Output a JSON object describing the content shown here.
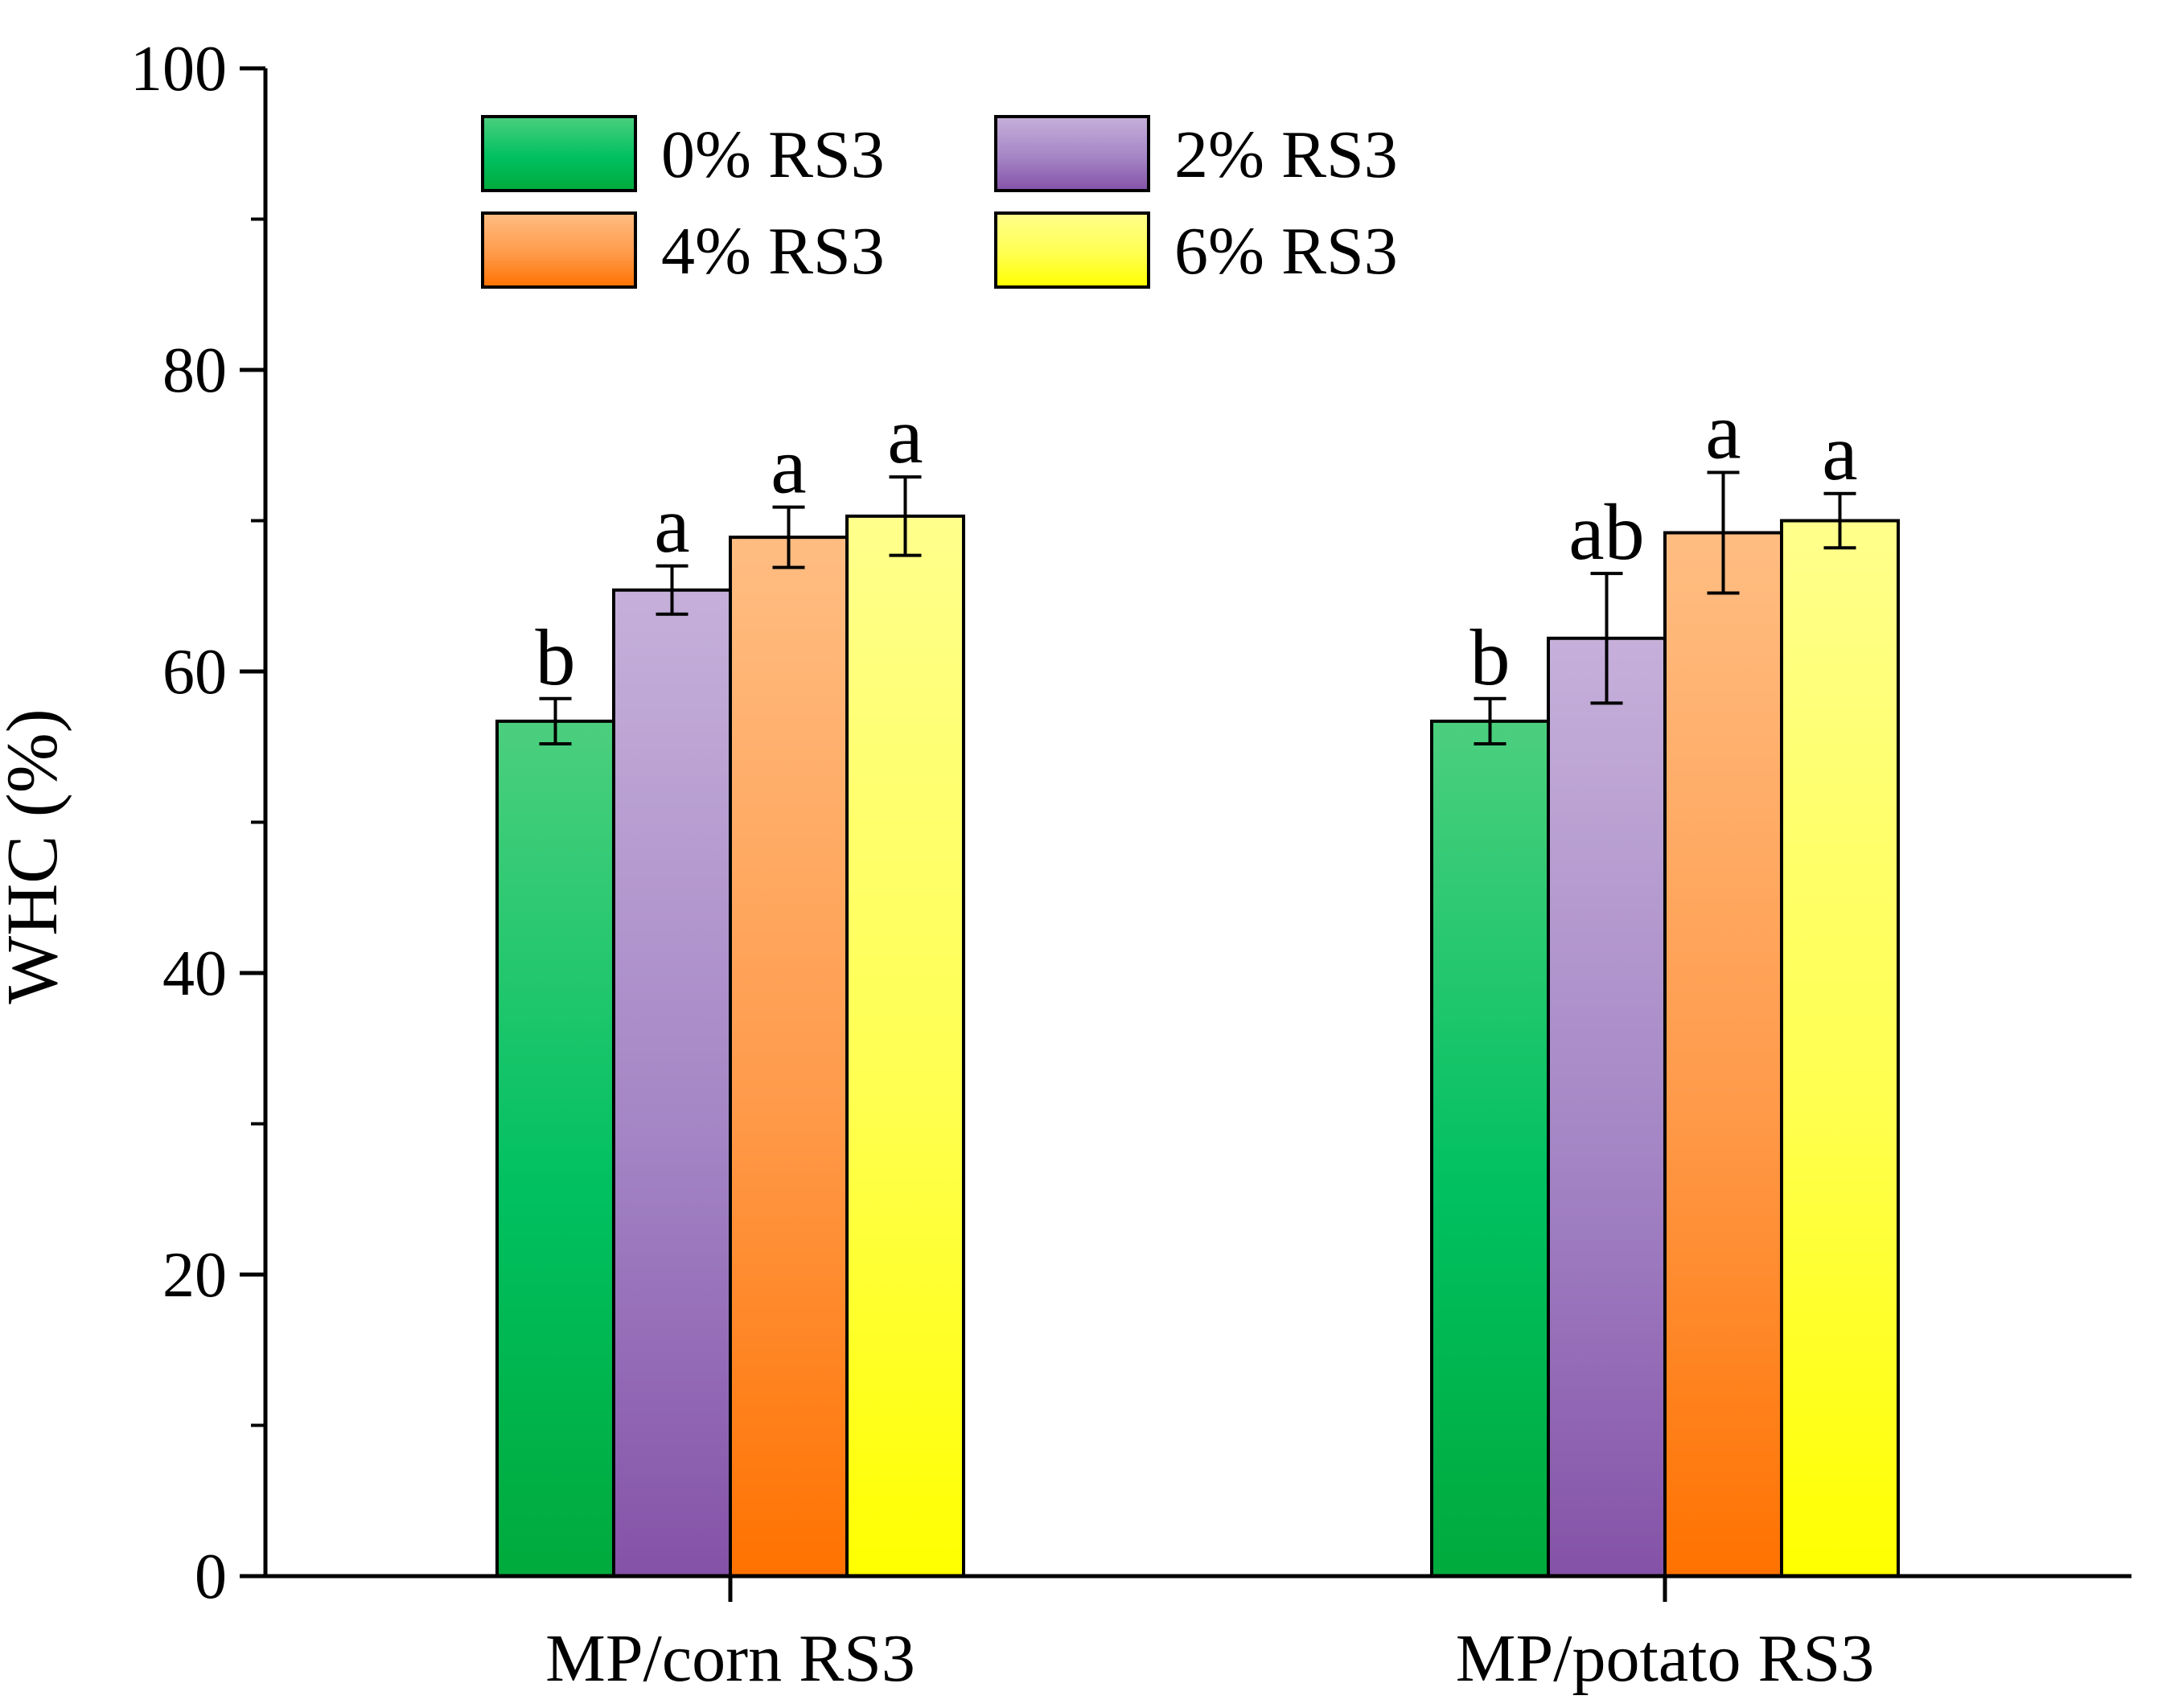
{
  "chart_data": {
    "type": "bar",
    "ylabel": "WHC (%)",
    "xlabel": "",
    "ylim": [
      0,
      100
    ],
    "yticks": [
      0,
      20,
      40,
      60,
      80,
      100
    ],
    "categories": [
      "MP/corn RS3",
      "MP/potato RS3"
    ],
    "legend_position": "top-left",
    "grid": false,
    "series": [
      {
        "name": "0% RS3",
        "values": [
          56.7,
          56.7
        ],
        "errors": [
          1.5,
          1.5
        ],
        "labels": [
          "b",
          "b"
        ],
        "color_top": "#4ccf7e",
        "color_mid": "#00c060",
        "color_bottom": "#00aa3c"
      },
      {
        "name": "2% RS3",
        "values": [
          65.4,
          62.2
        ],
        "errors": [
          1.6,
          4.3
        ],
        "labels": [
          "a",
          "ab"
        ],
        "color_top": "#c6b0da",
        "color_mid": "#a485c5",
        "color_bottom": "#8452a8"
      },
      {
        "name": "4% RS3",
        "values": [
          68.9,
          69.2
        ],
        "errors": [
          2.0,
          4.0
        ],
        "labels": [
          "a",
          "a"
        ],
        "color_top": "#ffbd82",
        "color_mid": "#ff9a4a",
        "color_bottom": "#ff7200"
      },
      {
        "name": "6% RS3",
        "values": [
          70.3,
          70.0
        ],
        "errors": [
          2.6,
          1.8
        ],
        "labels": [
          "a",
          "a"
        ],
        "color_top": "#ffff8c",
        "color_mid": "#ffff50",
        "color_bottom": "#ffff00"
      }
    ]
  }
}
